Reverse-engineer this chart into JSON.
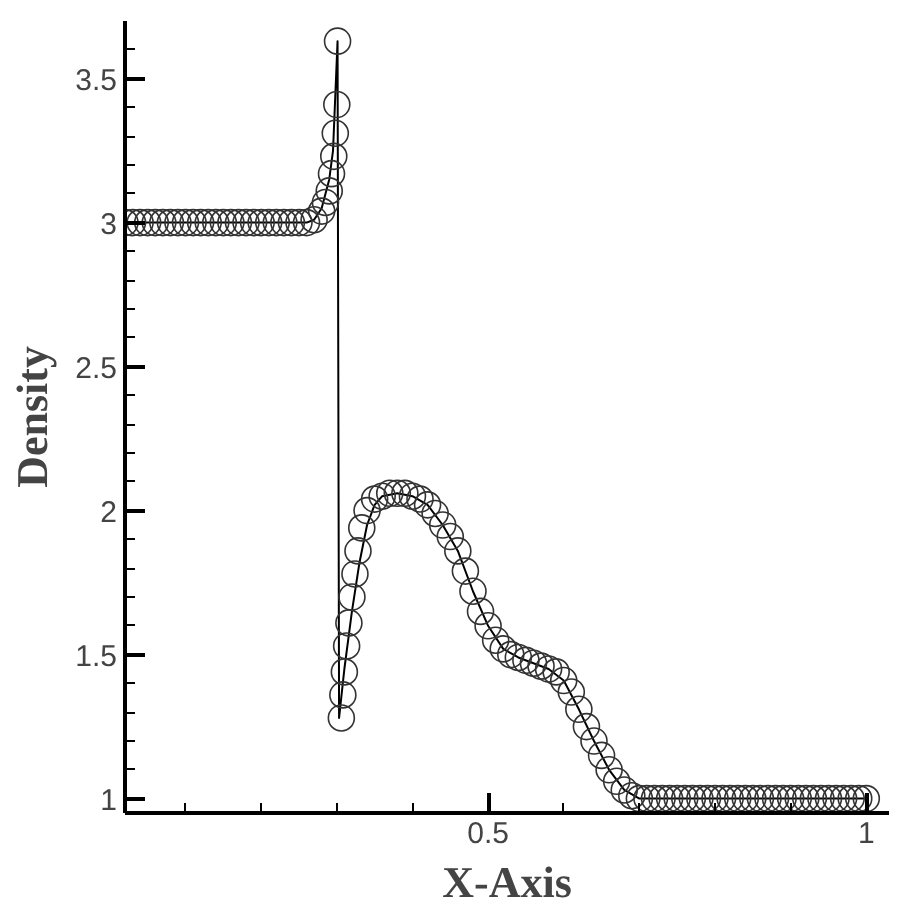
{
  "chart_data": {
    "type": "scatter",
    "xlabel": "X-Axis",
    "ylabel": "Density",
    "xlim": [
      0.02,
      1.03
    ],
    "ylim": [
      0.95,
      3.7
    ],
    "grid": false,
    "xticks": [
      {
        "value": 0.1,
        "label": null
      },
      {
        "value": 0.2,
        "label": null
      },
      {
        "value": 0.3,
        "label": null
      },
      {
        "value": 0.4,
        "label": null
      },
      {
        "value": 0.5,
        "label": "0.5"
      },
      {
        "value": 0.6,
        "label": null
      },
      {
        "value": 0.7,
        "label": null
      },
      {
        "value": 0.8,
        "label": null
      },
      {
        "value": 0.9,
        "label": null
      },
      {
        "value": 1,
        "label": "1"
      }
    ],
    "yticks": [
      {
        "value": 1,
        "label": "1"
      },
      {
        "value": 1.1,
        "label": null
      },
      {
        "value": 1.2,
        "label": null
      },
      {
        "value": 1.3,
        "label": null
      },
      {
        "value": 1.4,
        "label": null
      },
      {
        "value": 1.5,
        "label": "1.5"
      },
      {
        "value": 1.6,
        "label": null
      },
      {
        "value": 1.7,
        "label": null
      },
      {
        "value": 1.8,
        "label": null
      },
      {
        "value": 1.9,
        "label": null
      },
      {
        "value": 2,
        "label": "2"
      },
      {
        "value": 2.1,
        "label": null
      },
      {
        "value": 2.2,
        "label": null
      },
      {
        "value": 2.3,
        "label": null
      },
      {
        "value": 2.4,
        "label": null
      },
      {
        "value": 2.5,
        "label": "2.5"
      },
      {
        "value": 2.6,
        "label": null
      },
      {
        "value": 2.7,
        "label": null
      },
      {
        "value": 2.8,
        "label": null
      },
      {
        "value": 2.9,
        "label": null
      },
      {
        "value": 3,
        "label": "3"
      },
      {
        "value": 3.1,
        "label": null
      },
      {
        "value": 3.2,
        "label": null
      },
      {
        "value": 3.3,
        "label": null
      },
      {
        "value": 3.4,
        "label": null
      },
      {
        "value": 3.5,
        "label": "3.5"
      },
      {
        "value": 3.6,
        "label": null
      }
    ],
    "series": [
      {
        "type": "line",
        "marker": "none",
        "line_style": "solid",
        "color": "#000000",
        "x": [
          0.02,
          0.26,
          0.27,
          0.28,
          0.29,
          0.295,
          0.301,
          0.303,
          0.31,
          0.32,
          0.33,
          0.34,
          0.35,
          0.36,
          0.38,
          0.4,
          0.42,
          0.44,
          0.46,
          0.48,
          0.5,
          0.52,
          0.54,
          0.56,
          0.58,
          0.6,
          0.62,
          0.64,
          0.66,
          0.68,
          0.7,
          1.0
        ],
        "values": [
          3.0,
          3.0,
          3.01,
          3.05,
          3.15,
          3.25,
          3.63,
          1.28,
          1.45,
          1.65,
          1.82,
          1.95,
          2.02,
          2.05,
          2.06,
          2.05,
          2.02,
          1.95,
          1.86,
          1.72,
          1.6,
          1.52,
          1.49,
          1.47,
          1.45,
          1.41,
          1.31,
          1.2,
          1.1,
          1.03,
          1.0,
          1.0
        ]
      },
      {
        "marker": "circle",
        "color": "#333333",
        "x": [
          0.02,
          0.03,
          0.04,
          0.05,
          0.06,
          0.07,
          0.08,
          0.09,
          0.1,
          0.11,
          0.12,
          0.13,
          0.14,
          0.15,
          0.16,
          0.17,
          0.18,
          0.19,
          0.2,
          0.21,
          0.22,
          0.23,
          0.24,
          0.25,
          0.26,
          0.27,
          0.28,
          0.285,
          0.29,
          0.293,
          0.296,
          0.298,
          0.3,
          0.301,
          0.306,
          0.308,
          0.31,
          0.313,
          0.316,
          0.32,
          0.324,
          0.328,
          0.333,
          0.34,
          0.35,
          0.36,
          0.37,
          0.38,
          0.39,
          0.4,
          0.41,
          0.42,
          0.43,
          0.44,
          0.45,
          0.46,
          0.47,
          0.48,
          0.49,
          0.5,
          0.51,
          0.52,
          0.53,
          0.54,
          0.55,
          0.56,
          0.57,
          0.58,
          0.59,
          0.6,
          0.61,
          0.62,
          0.63,
          0.64,
          0.65,
          0.66,
          0.67,
          0.68,
          0.69,
          0.7,
          0.71,
          0.72,
          0.73,
          0.74,
          0.75,
          0.76,
          0.77,
          0.78,
          0.79,
          0.8,
          0.81,
          0.82,
          0.83,
          0.84,
          0.85,
          0.86,
          0.87,
          0.88,
          0.89,
          0.9,
          0.91,
          0.92,
          0.93,
          0.94,
          0.95,
          0.96,
          0.97,
          0.98,
          0.99,
          1.0
        ],
        "values": [
          3.0,
          3.0,
          3.0,
          3.0,
          3.0,
          3.0,
          3.0,
          3.0,
          3.0,
          3.0,
          3.0,
          3.0,
          3.0,
          3.0,
          3.0,
          3.0,
          3.0,
          3.0,
          3.0,
          3.0,
          3.0,
          3.0,
          3.0,
          3.0,
          3.0,
          3.01,
          3.04,
          3.07,
          3.11,
          3.17,
          3.23,
          3.31,
          3.41,
          3.63,
          1.28,
          1.36,
          1.44,
          1.53,
          1.61,
          1.7,
          1.78,
          1.86,
          1.94,
          2.0,
          2.04,
          2.05,
          2.06,
          2.06,
          2.06,
          2.05,
          2.04,
          2.02,
          1.99,
          1.95,
          1.91,
          1.86,
          1.79,
          1.72,
          1.65,
          1.6,
          1.55,
          1.52,
          1.5,
          1.49,
          1.48,
          1.47,
          1.46,
          1.45,
          1.44,
          1.41,
          1.37,
          1.31,
          1.25,
          1.2,
          1.15,
          1.1,
          1.06,
          1.03,
          1.01,
          1.0,
          1.0,
          1.0,
          1.0,
          1.0,
          1.0,
          1.0,
          1.0,
          1.0,
          1.0,
          1.0,
          1.0,
          1.0,
          1.0,
          1.0,
          1.0,
          1.0,
          1.0,
          1.0,
          1.0,
          1.0,
          1.0,
          1.0,
          1.0,
          1.0,
          1.0,
          1.0,
          1.0,
          1.0,
          1.0,
          1.0
        ]
      }
    ]
  }
}
